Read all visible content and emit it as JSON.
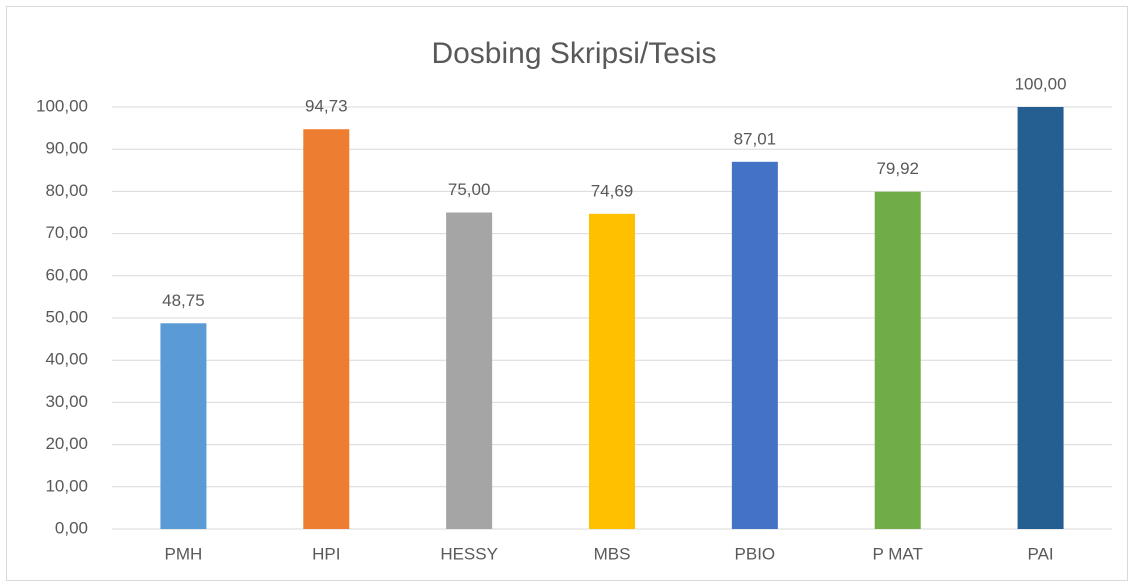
{
  "chart_data": {
    "type": "bar",
    "title": "Dosbing Skripsi/Tesis",
    "categories": [
      "PMH",
      "HPI",
      "HESSY",
      "MBS",
      "PBIO",
      "P MAT",
      "PAI"
    ],
    "values": [
      48.75,
      94.73,
      75.0,
      74.69,
      87.01,
      79.92,
      100.0
    ],
    "value_labels": [
      "48,75",
      "94,73",
      "75,00",
      "74,69",
      "87,01",
      "79,92",
      "100,00"
    ],
    "colors": [
      "#5b9bd5",
      "#ed7d31",
      "#a5a5a5",
      "#ffc000",
      "#4472c4",
      "#70ad47",
      "#255e91"
    ],
    "ylim": [
      0,
      100
    ],
    "yticks": [
      {
        "value": 0,
        "label": "0,00"
      },
      {
        "value": 10,
        "label": "10,00"
      },
      {
        "value": 20,
        "label": "20,00"
      },
      {
        "value": 30,
        "label": "30,00"
      },
      {
        "value": 40,
        "label": "40,00"
      },
      {
        "value": 50,
        "label": "50,00"
      },
      {
        "value": 60,
        "label": "60,00"
      },
      {
        "value": 70,
        "label": "70,00"
      },
      {
        "value": 80,
        "label": "80,00"
      },
      {
        "value": 90,
        "label": "90,00"
      },
      {
        "value": 100,
        "label": "100,00"
      }
    ],
    "grid": true
  }
}
